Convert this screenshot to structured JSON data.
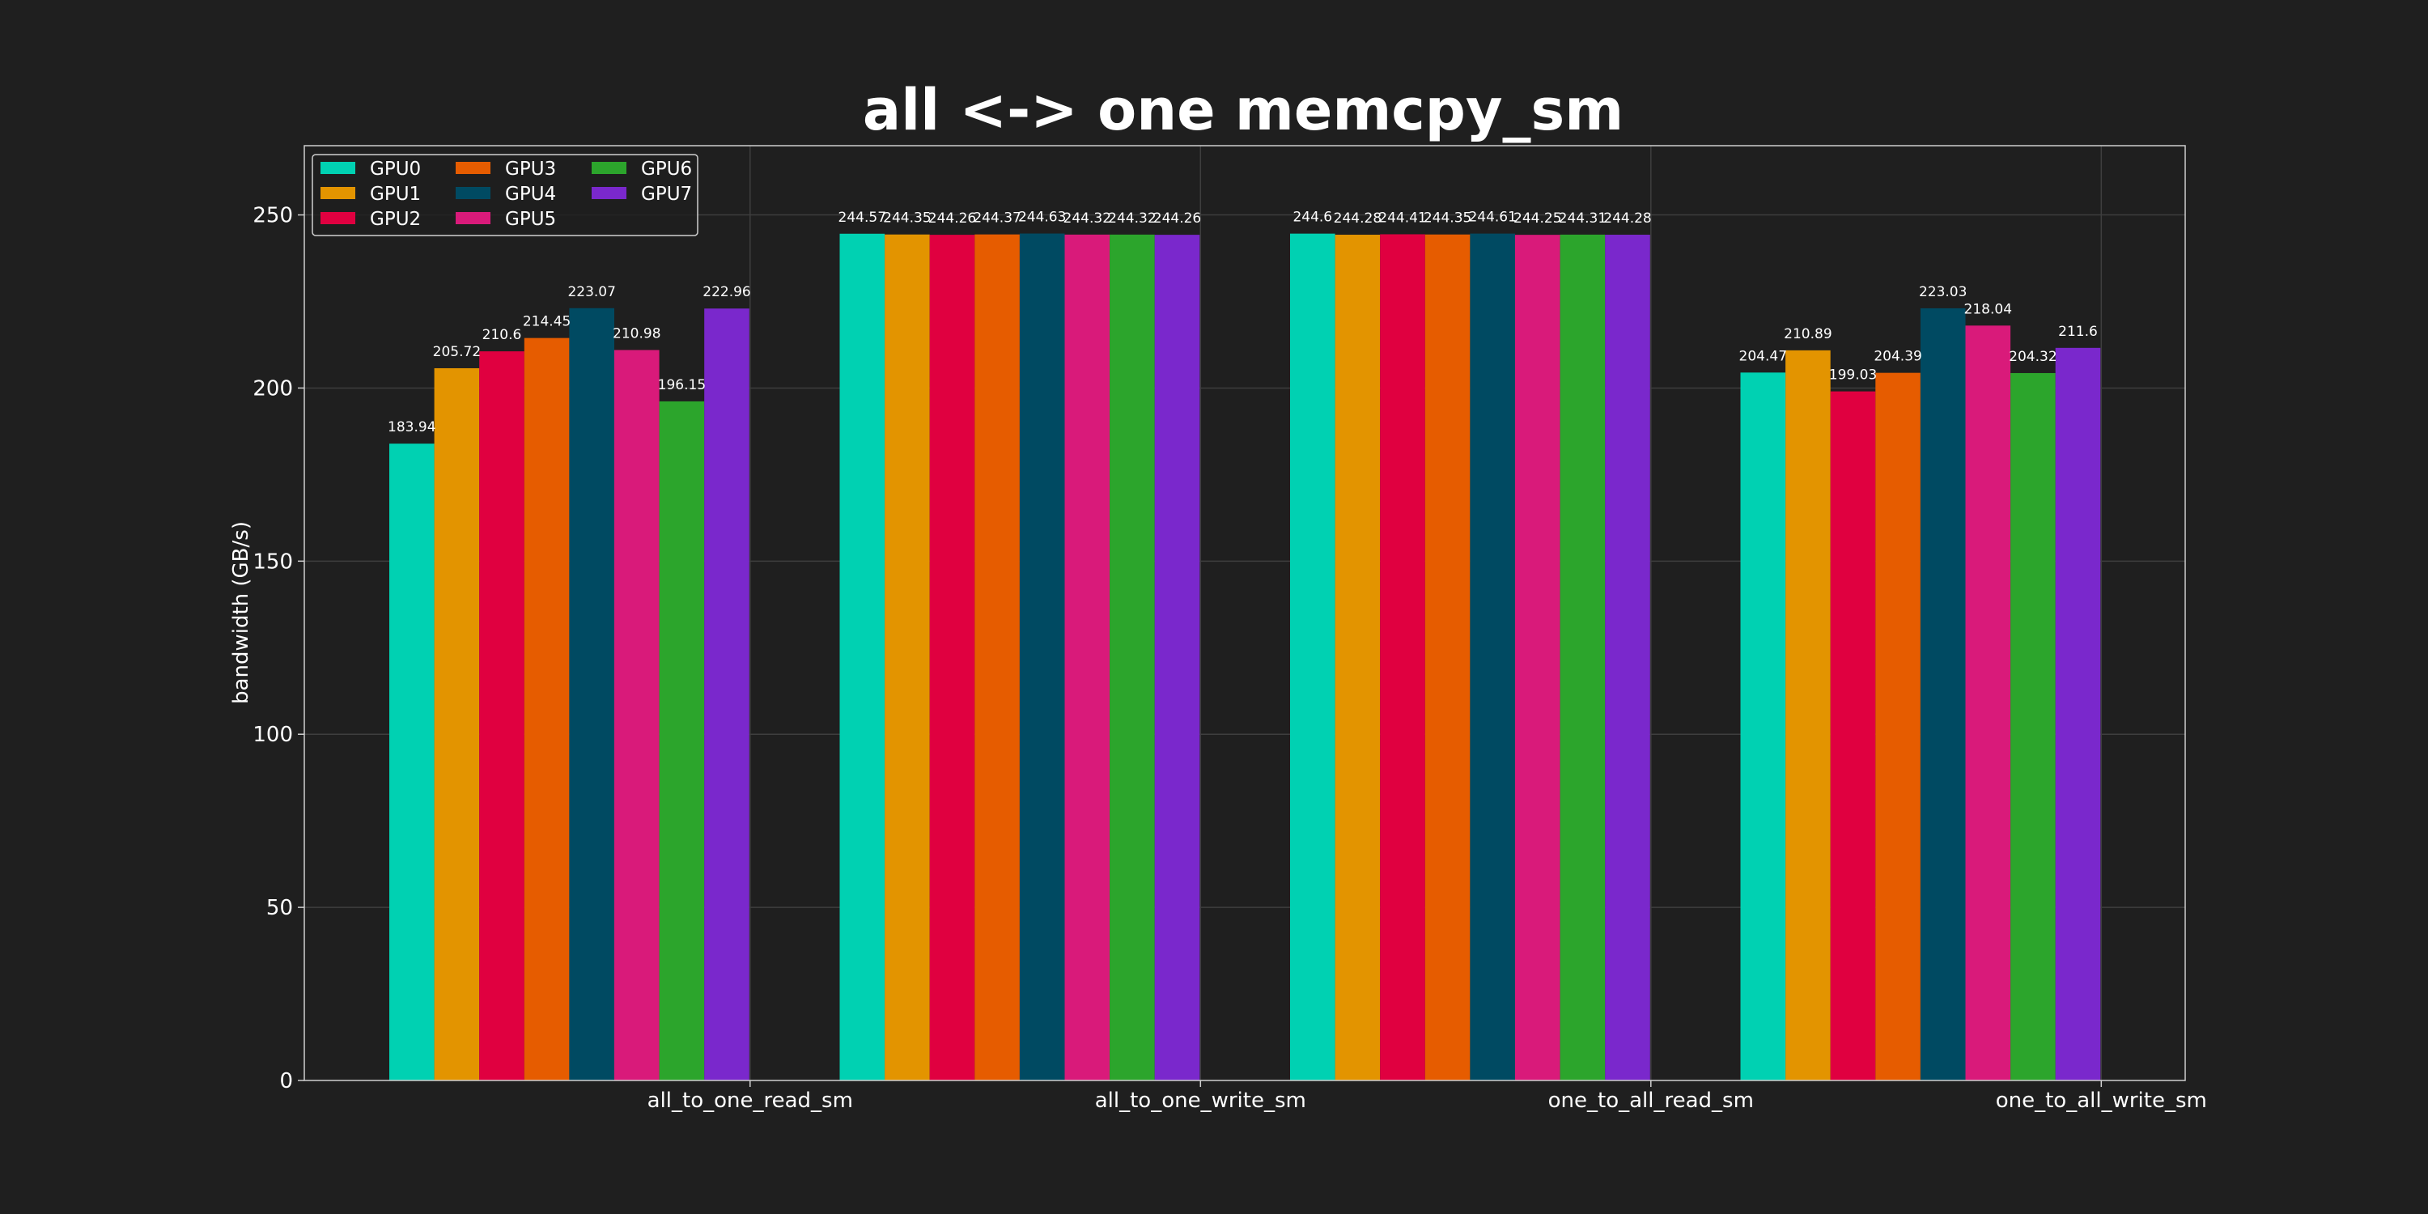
{
  "chart_data": {
    "type": "bar",
    "title": "all <-> one memcpy_sm",
    "xlabel": "",
    "ylabel": "bandwidth (GB/s)",
    "ylim": [
      0,
      270
    ],
    "yticks": [
      0,
      50,
      100,
      150,
      200,
      250
    ],
    "grid": true,
    "legend_position": "top-left",
    "legend_columns": 3,
    "categories": [
      "all_to_one_read_sm",
      "all_to_one_write_sm",
      "one_to_all_read_sm",
      "one_to_all_write_sm"
    ],
    "series": [
      {
        "name": "GPU0",
        "color": "#00d1b2",
        "values": [
          183.94,
          244.57,
          244.6,
          204.47
        ],
        "labels": [
          "183.94",
          "244.57",
          "244.6",
          "204.47"
        ]
      },
      {
        "name": "GPU1",
        "color": "#e39400",
        "values": [
          205.72,
          244.35,
          244.28,
          210.89
        ],
        "labels": [
          "205.72",
          "244.35",
          "244.28",
          "210.89"
        ]
      },
      {
        "name": "GPU2",
        "color": "#e00040",
        "values": [
          210.6,
          244.26,
          244.41,
          199.03
        ],
        "labels": [
          "210.6",
          "244.26",
          "244.41",
          "199.03"
        ]
      },
      {
        "name": "GPU3",
        "color": "#e65c00",
        "values": [
          214.45,
          244.37,
          244.35,
          204.39
        ],
        "labels": [
          "214.45",
          "244.37",
          "244.35",
          "204.39"
        ]
      },
      {
        "name": "GPU4",
        "color": "#004a62",
        "values": [
          223.07,
          244.63,
          244.61,
          223.03
        ],
        "labels": [
          "223.07",
          "244.63",
          "244.61",
          "223.03"
        ]
      },
      {
        "name": "GPU5",
        "color": "#d91a7a",
        "values": [
          210.98,
          244.32,
          244.25,
          218.04
        ],
        "labels": [
          "210.98",
          "244.32",
          "244.25",
          "218.04"
        ]
      },
      {
        "name": "GPU6",
        "color": "#2ca52c",
        "values": [
          196.15,
          244.32,
          244.31,
          204.32
        ],
        "labels": [
          "196.15",
          "244.32",
          "244.31",
          "204.32"
        ]
      },
      {
        "name": "GPU7",
        "color": "#7a28cc",
        "values": [
          222.96,
          244.26,
          244.28,
          211.6
        ],
        "labels": [
          "222.96",
          "244.26",
          "244.28",
          "211.6"
        ]
      }
    ]
  },
  "colors": {
    "background": "#1f1f1f",
    "axes_frame": "#cfcfcf",
    "grid": "#3e3e3e",
    "text": "#ffffff"
  }
}
